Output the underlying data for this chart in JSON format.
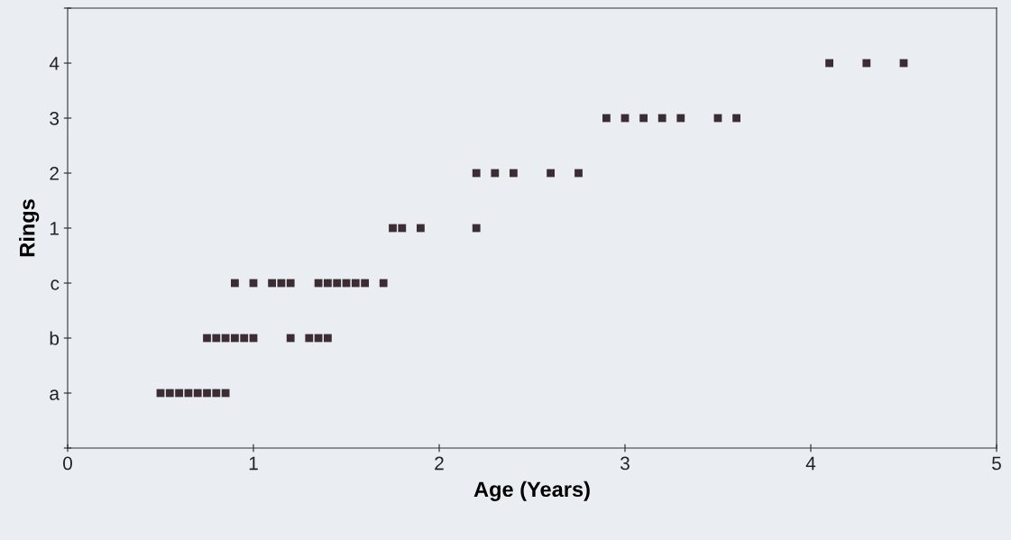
{
  "chart_data": {
    "type": "scatter",
    "xlabel": "Age (Years)",
    "ylabel": "Rings",
    "xlim": [
      0,
      5
    ],
    "xticks": [
      0,
      1,
      2,
      3,
      4,
      5
    ],
    "ylim": [
      -3,
      5
    ],
    "yticks": [
      {
        "value": -3,
        "label": null
      },
      {
        "value": -2,
        "label": "a"
      },
      {
        "value": -1,
        "label": "b"
      },
      {
        "value": 0,
        "label": "c"
      },
      1,
      2,
      3,
      4,
      {
        "value": 5,
        "label": null
      }
    ],
    "marker": "square",
    "grid": false,
    "legend": false,
    "series": [
      {
        "color": "#3b2d33",
        "x": [
          0.5,
          0.55,
          0.6,
          0.65,
          0.7,
          0.75,
          0.8,
          0.85,
          0.75,
          0.8,
          0.85,
          0.9,
          0.95,
          1.0,
          1.2,
          1.3,
          1.35,
          1.4,
          0.9,
          1.0,
          1.1,
          1.15,
          1.2,
          1.35,
          1.4,
          1.45,
          1.5,
          1.55,
          1.6,
          1.7,
          1.75,
          1.8,
          1.9,
          2.2,
          2.2,
          2.3,
          2.4,
          2.6,
          2.75,
          2.9,
          3.0,
          3.1,
          3.2,
          3.3,
          3.5,
          3.6,
          4.1,
          4.3,
          4.5
        ],
        "values": [
          -2,
          -2,
          -2,
          -2,
          -2,
          -2,
          -2,
          -2,
          -1,
          -1,
          -1,
          -1,
          -1,
          -1,
          -1,
          -1,
          -1,
          -1,
          0,
          0,
          0,
          0,
          0,
          0,
          0,
          0,
          0,
          0,
          0,
          0,
          1,
          1,
          1,
          1,
          2,
          2,
          2,
          2,
          2,
          3,
          3,
          3,
          3,
          3,
          3,
          3,
          4,
          4,
          4
        ]
      }
    ]
  }
}
